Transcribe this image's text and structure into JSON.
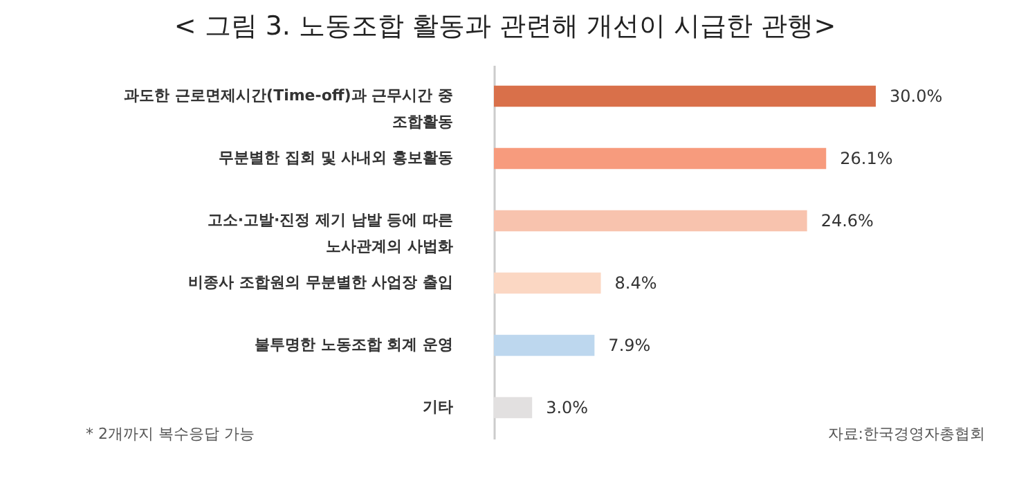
{
  "chart_data": {
    "type": "bar",
    "orientation": "horizontal",
    "title": "< 그림 3. 노동조합 활동과 관련해 개선이 시급한 관행>",
    "categories": [
      "과도한 근로면제시간(Time-off)과 근무시간 중\n조합활동",
      "무분별한 집회 및 사내외 홍보활동",
      "고소·고발·진정 제기 남발 등에 따른\n노사관계의 사법화",
      "비종사 조합원의 무분별한 사업장 출입",
      "불투명한 노동조합 회계 운영",
      "기타"
    ],
    "values": [
      30.0,
      26.1,
      24.6,
      8.4,
      7.9,
      3.0
    ],
    "value_labels": [
      "30.0%",
      "26.1%",
      "24.6%",
      "8.4%",
      "7.9%",
      "3.0%"
    ],
    "colors": [
      "#d9704a",
      "#f79b7d",
      "#f8c3ae",
      "#fbd7c3",
      "#bdd7ee",
      "#e2e0e0"
    ],
    "annotations": [
      "* 2개까지 복수응답 가능",
      "자료:한국경영자총협회"
    ]
  }
}
